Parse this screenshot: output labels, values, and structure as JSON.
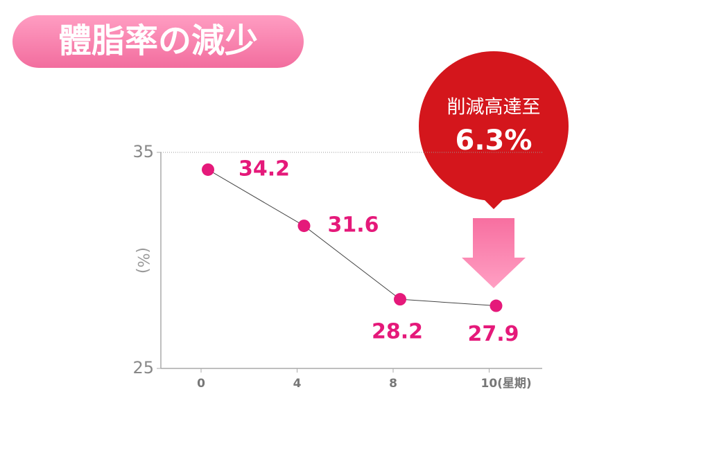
{
  "chart_data": {
    "type": "line",
    "title": "體脂率の減少",
    "categories": [
      "0",
      "4",
      "8",
      "10(星期)"
    ],
    "y_label": "(%)",
    "series": [
      {
        "name": "體脂率",
        "color": "#e5197a",
        "values": [
          34.2,
          31.6,
          28.2,
          27.9
        ]
      }
    ],
    "ylim": [
      25,
      35
    ],
    "yticks": [
      25,
      35
    ],
    "grid": true,
    "annotation": [
      "削減高達至",
      "6.3%"
    ]
  }
}
